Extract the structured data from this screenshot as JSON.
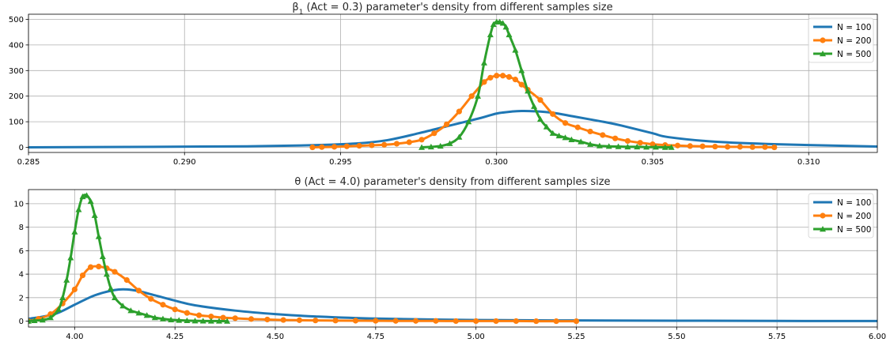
{
  "chart_data": [
    {
      "type": "line",
      "title": "β1 (Act = 0.3) parameter's density from different samples size",
      "title_main": "β",
      "title_sub": "1",
      "title_rest": " (Act = 0.3) parameter's density from different samples size",
      "xlim": [
        0.285,
        0.3122
      ],
      "ylim": [
        -20,
        520
      ],
      "xticks": [
        0.285,
        0.29,
        0.295,
        0.3,
        0.305,
        0.31
      ],
      "xtick_labels": [
        "0.285",
        "0.290",
        "0.295",
        "0.300",
        "0.305",
        "0.310"
      ],
      "yticks": [
        0,
        100,
        200,
        300,
        400,
        500
      ],
      "ytick_labels": [
        "0",
        "100",
        "200",
        "300",
        "400",
        "500"
      ],
      "grid": true,
      "legend": "top-right",
      "series": [
        {
          "name": "N = 100",
          "color": "#1f77b4",
          "marker": "none",
          "x": [
            0.285,
            0.289,
            0.292,
            0.294,
            0.2955,
            0.2965,
            0.2975,
            0.2985,
            0.2995,
            0.3,
            0.3005,
            0.3008,
            0.3012,
            0.3018,
            0.3025,
            0.3035,
            0.304,
            0.305,
            0.3055,
            0.307,
            0.309,
            0.3122
          ],
          "y": [
            0,
            2,
            4,
            8,
            15,
            28,
            55,
            85,
            115,
            132,
            140,
            142,
            141,
            135,
            120,
            98,
            85,
            55,
            40,
            22,
            12,
            3
          ]
        },
        {
          "name": "N = 200",
          "color": "#ff7f0e",
          "marker": "circle",
          "x": [
            0.2941,
            0.2944,
            0.2948,
            0.2952,
            0.2956,
            0.296,
            0.2964,
            0.2968,
            0.2972,
            0.2976,
            0.298,
            0.2984,
            0.2988,
            0.2992,
            0.2996,
            0.2998,
            0.3,
            0.3002,
            0.3004,
            0.3006,
            0.3008,
            0.301,
            0.3014,
            0.3018,
            0.3022,
            0.3026,
            0.303,
            0.3034,
            0.3038,
            0.3042,
            0.3046,
            0.305,
            0.3054,
            0.3058,
            0.3062,
            0.3066,
            0.307,
            0.3074,
            0.3078,
            0.3082,
            0.3086,
            0.3089
          ],
          "y": [
            0,
            1,
            2,
            4,
            6,
            8,
            10,
            14,
            20,
            30,
            55,
            90,
            140,
            200,
            255,
            272,
            280,
            280,
            275,
            265,
            245,
            225,
            185,
            130,
            95,
            78,
            62,
            48,
            35,
            25,
            18,
            12,
            9,
            7,
            5,
            4,
            3,
            2,
            2,
            1,
            1,
            0
          ]
        },
        {
          "name": "N = 500",
          "color": "#2ca02c",
          "marker": "triangle",
          "x": [
            0.2976,
            0.2979,
            0.2982,
            0.2985,
            0.2988,
            0.2991,
            0.2994,
            0.2996,
            0.2998,
            0.2999,
            0.3,
            0.3001,
            0.3002,
            0.3003,
            0.3004,
            0.3006,
            0.3008,
            0.301,
            0.3012,
            0.3014,
            0.3016,
            0.3018,
            0.302,
            0.3022,
            0.3024,
            0.3027,
            0.303,
            0.3033,
            0.3036,
            0.3039,
            0.3042,
            0.3045,
            0.3048,
            0.3051,
            0.3054,
            0.3056
          ],
          "y": [
            0,
            2,
            5,
            15,
            40,
            100,
            200,
            330,
            440,
            480,
            490,
            490,
            485,
            470,
            440,
            380,
            300,
            220,
            160,
            110,
            80,
            55,
            45,
            38,
            30,
            22,
            12,
            6,
            4,
            3,
            2,
            2,
            1,
            1,
            0,
            0
          ]
        }
      ]
    },
    {
      "type": "line",
      "title": "θ (Act = 4.0) parameter's density from different samples size",
      "title_main": "θ",
      "title_sub": "",
      "title_rest": " (Act = 4.0) parameter's density from different samples size",
      "xlim": [
        3.885,
        6.0
      ],
      "ylim": [
        -0.5,
        11.2
      ],
      "xticks": [
        4.0,
        4.25,
        4.5,
        4.75,
        5.0,
        5.25,
        5.5,
        5.75,
        6.0
      ],
      "xtick_labels": [
        "4.00",
        "4.25",
        "4.50",
        "4.75",
        "5.00",
        "5.25",
        "5.50",
        "5.75",
        "6.00"
      ],
      "yticks": [
        0,
        2,
        4,
        6,
        8,
        10
      ],
      "ytick_labels": [
        "0",
        "2",
        "4",
        "6",
        "8",
        "10"
      ],
      "grid": true,
      "legend": "top-right",
      "series": [
        {
          "name": "N = 100",
          "color": "#1f77b4",
          "marker": "none",
          "x": [
            3.885,
            3.95,
            4.0,
            4.05,
            4.1,
            4.13,
            4.16,
            4.2,
            4.25,
            4.3,
            4.4,
            4.5,
            4.6,
            4.75,
            5.0,
            5.25,
            5.5,
            5.75,
            6.0
          ],
          "y": [
            0.2,
            0.6,
            1.4,
            2.2,
            2.65,
            2.7,
            2.55,
            2.2,
            1.75,
            1.35,
            0.9,
            0.6,
            0.4,
            0.22,
            0.1,
            0.06,
            0.04,
            0.02,
            0.01
          ]
        },
        {
          "name": "N = 200",
          "color": "#ff7f0e",
          "marker": "circle",
          "x": [
            3.885,
            3.91,
            3.94,
            3.97,
            4.0,
            4.02,
            4.04,
            4.06,
            4.08,
            4.1,
            4.13,
            4.16,
            4.19,
            4.22,
            4.25,
            4.28,
            4.31,
            4.34,
            4.37,
            4.4,
            4.44,
            4.48,
            4.52,
            4.56,
            4.6,
            4.65,
            4.7,
            4.75,
            4.8,
            4.85,
            4.9,
            4.95,
            5.0,
            5.05,
            5.1,
            5.15,
            5.2,
            5.25
          ],
          "y": [
            0.0,
            0.2,
            0.6,
            1.5,
            2.7,
            3.9,
            4.6,
            4.65,
            4.5,
            4.2,
            3.5,
            2.6,
            1.9,
            1.4,
            1.0,
            0.7,
            0.5,
            0.4,
            0.3,
            0.25,
            0.18,
            0.14,
            0.1,
            0.08,
            0.06,
            0.05,
            0.04,
            0.03,
            0.02,
            0.02,
            0.02,
            0.01,
            0.01,
            0.01,
            0.01,
            0.0,
            0.0,
            0.0
          ]
        },
        {
          "name": "N = 500",
          "color": "#2ca02c",
          "marker": "triangle",
          "x": [
            3.885,
            3.9,
            3.92,
            3.94,
            3.96,
            3.97,
            3.98,
            3.99,
            4.0,
            4.01,
            4.02,
            4.03,
            4.04,
            4.05,
            4.06,
            4.07,
            4.08,
            4.09,
            4.1,
            4.12,
            4.14,
            4.16,
            4.18,
            4.2,
            4.22,
            4.24,
            4.26,
            4.28,
            4.3,
            4.32,
            4.34,
            4.36,
            4.38
          ],
          "y": [
            0.0,
            0.05,
            0.1,
            0.3,
            1.0,
            2.0,
            3.5,
            5.4,
            7.6,
            9.5,
            10.6,
            10.7,
            10.2,
            9.0,
            7.2,
            5.5,
            4.0,
            2.8,
            2.0,
            1.3,
            0.9,
            0.7,
            0.5,
            0.3,
            0.2,
            0.12,
            0.08,
            0.05,
            0.03,
            0.02,
            0.01,
            0.01,
            0.0
          ]
        }
      ]
    }
  ]
}
